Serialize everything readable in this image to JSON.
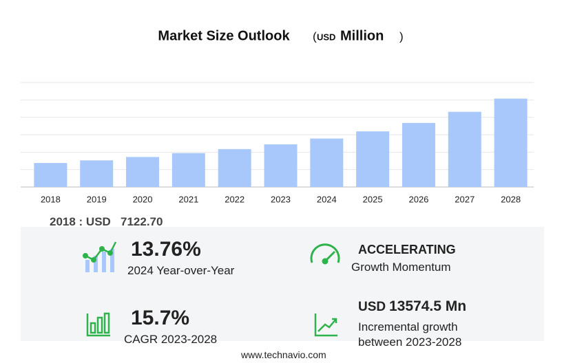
{
  "chart_data": {
    "type": "bar",
    "title": "Market Size Outlook",
    "unit": {
      "open": "(",
      "currency": "USD",
      "name": "Million",
      "close": ")"
    },
    "categories": [
      "2018",
      "2019",
      "2020",
      "2021",
      "2022",
      "2023",
      "2024",
      "2025",
      "2026",
      "2027",
      "2028"
    ],
    "values": [
      7122.7,
      7900,
      8900,
      10050,
      11250,
      12639,
      14378,
      16500,
      19000,
      22300,
      26213
    ],
    "color": "#a8c8fb",
    "ylim": [
      0,
      31000
    ],
    "grid": true
  },
  "summary": {
    "base_label": "2018 : USD",
    "base_value": "7122.70",
    "yoy": {
      "value": "13.76%",
      "label": "2024 Year-over-Year"
    },
    "momentum": {
      "value": "ACCELERATING",
      "label": "Growth Momentum"
    },
    "cagr": {
      "value": "15.7%",
      "label": "CAGR 2023-2028"
    },
    "incremental": {
      "currency": "USD",
      "value": "13574.5 Mn",
      "label1": "Incremental growth",
      "label2": "between 2023-2028"
    }
  },
  "footer": "www.technavio.com"
}
